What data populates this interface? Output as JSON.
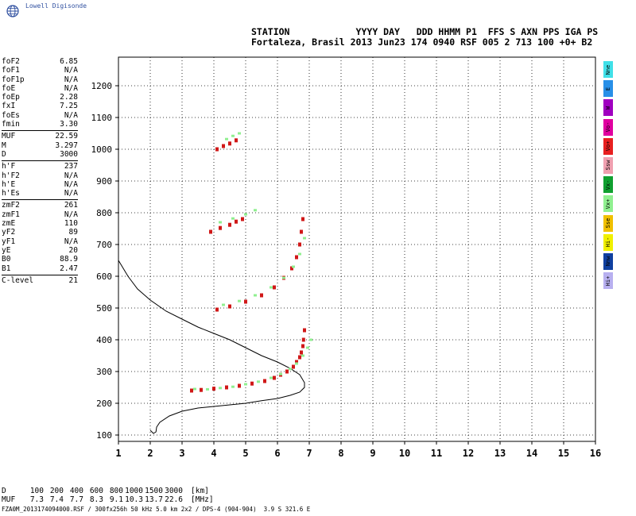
{
  "logo": {
    "text": "Lowell Digisonde",
    "icon": "globe-icon"
  },
  "header": {
    "line1": "STATION            YYYY DAY   DDD HHMM P1  FFS S AXN PPS IGA PS",
    "line2": "Fortaleza, Brasil 2013 Jun23 174 0940 RSF 005 2 713 100 +0+ B2"
  },
  "params": {
    "group1": [
      {
        "name": "foF2",
        "value": "6.85"
      },
      {
        "name": "foF1",
        "value": "N/A"
      },
      {
        "name": "foF1p",
        "value": "N/A"
      },
      {
        "name": "foE",
        "value": "N/A"
      },
      {
        "name": "foEp",
        "value": "2.28"
      },
      {
        "name": "fxI",
        "value": "7.25"
      },
      {
        "name": "foEs",
        "value": "N/A"
      },
      {
        "name": "fmin",
        "value": "3.30"
      }
    ],
    "group2": [
      {
        "name": "MUF",
        "value": "22.59"
      },
      {
        "name": "M",
        "value": "3.297"
      },
      {
        "name": "D",
        "value": "3000"
      }
    ],
    "group3": [
      {
        "name": "h'F",
        "value": "237"
      },
      {
        "name": "h'F2",
        "value": "N/A"
      },
      {
        "name": "h'E",
        "value": "N/A"
      },
      {
        "name": "h'Es",
        "value": "N/A"
      }
    ],
    "group4": [
      {
        "name": "zmF2",
        "value": "261"
      },
      {
        "name": "zmF1",
        "value": "N/A"
      },
      {
        "name": "zmE",
        "value": "110"
      },
      {
        "name": "yF2",
        "value": "89"
      },
      {
        "name": "yF1",
        "value": "N/A"
      },
      {
        "name": "yE",
        "value": "20"
      },
      {
        "name": "B0",
        "value": "88.9"
      },
      {
        "name": "B1",
        "value": "2.47"
      }
    ],
    "group5": [
      {
        "name": "C-level",
        "value": "21"
      }
    ]
  },
  "legend": [
    {
      "label": "Nne",
      "color": "#40e0e8"
    },
    {
      "label": "E",
      "color": "#2890e8"
    },
    {
      "label": "W",
      "color": "#a000c0"
    },
    {
      "label": "Vo-",
      "color": "#e000a0"
    },
    {
      "label": "Vo+",
      "color": "#e82020"
    },
    {
      "label": "Ssw",
      "color": "#f0a0b0"
    },
    {
      "label": "Vx-",
      "color": "#10a030"
    },
    {
      "label": "Vx+",
      "color": "#90f090"
    },
    {
      "label": "Sse",
      "color": "#f0c000"
    },
    {
      "label": "Hi-",
      "color": "#f0f000"
    },
    {
      "label": "Nnw",
      "color": "#1040a0"
    },
    {
      "label": "Hi+",
      "color": "#b8b0f0"
    }
  ],
  "muf_table": {
    "d_label": "D",
    "d_values": [
      "100",
      "200",
      "400",
      "600",
      "800",
      "1000",
      "1500",
      "3000"
    ],
    "d_unit": "[km]",
    "muf_label": "MUF",
    "muf_values": [
      "7.3",
      "7.4",
      "7.7",
      "8.3",
      "9.1",
      "10.3",
      "13.7",
      "22.6"
    ],
    "muf_unit": "[MHz]"
  },
  "footer": "FZA0M_2013174094000.RSF / 300fx256h 50 kHz 5.0 km 2x2 / DPS-4 (904-904)  3.9 S 321.6 E",
  "chart_data": {
    "type": "scatter",
    "title": "",
    "xlabel": "",
    "ylabel": "",
    "xlim": [
      1,
      16
    ],
    "ylim": [
      80,
      1290
    ],
    "xticks": [
      1,
      2,
      3,
      4,
      5,
      6,
      7,
      8,
      9,
      10,
      11,
      12,
      13,
      14,
      15,
      16
    ],
    "yticks": [
      100,
      200,
      300,
      400,
      500,
      600,
      700,
      800,
      900,
      1000,
      1100,
      1200
    ],
    "grid": "dotted",
    "legend_position": "right",
    "profile": {
      "x": [
        1.0,
        1.3,
        1.6,
        2.0,
        2.5,
        3.0,
        3.5,
        4.0,
        4.5,
        5.0,
        5.5,
        6.0,
        6.4,
        6.7,
        6.85,
        6.85,
        6.7,
        6.4,
        6.0,
        5.5,
        5.0,
        4.5,
        4.0,
        3.5,
        3.0,
        2.6,
        2.3,
        2.2,
        2.18,
        2.1,
        2.0
      ],
      "y": [
        650,
        600,
        560,
        525,
        490,
        465,
        440,
        420,
        400,
        375,
        350,
        330,
        310,
        290,
        265,
        250,
        235,
        225,
        215,
        208,
        200,
        195,
        190,
        185,
        175,
        160,
        140,
        125,
        110,
        105,
        115
      ]
    },
    "traces": [
      {
        "mode": "o",
        "x": [
          3.3,
          3.6,
          4.0,
          4.4,
          4.8,
          5.2,
          5.6,
          5.9,
          6.1,
          6.3,
          6.5,
          6.6,
          6.7,
          6.75,
          6.8,
          6.82,
          6.85
        ],
        "y": [
          240,
          242,
          246,
          250,
          255,
          262,
          270,
          280,
          290,
          300,
          315,
          330,
          345,
          360,
          380,
          400,
          430
        ]
      },
      {
        "mode": "x",
        "x": [
          3.4,
          3.8,
          4.2,
          4.6,
          5.0,
          5.4,
          5.8,
          6.1,
          6.4,
          6.6,
          6.8,
          6.95,
          7.05
        ],
        "y": [
          245,
          244,
          248,
          252,
          260,
          268,
          280,
          292,
          308,
          325,
          350,
          375,
          400
        ]
      },
      {
        "mode": "o",
        "x": [
          4.1,
          4.5,
          5.0,
          5.5,
          5.9,
          6.2,
          6.45,
          6.6,
          6.7,
          6.75,
          6.8
        ],
        "y": [
          495,
          505,
          520,
          540,
          565,
          595,
          625,
          660,
          700,
          740,
          780
        ]
      },
      {
        "mode": "x",
        "x": [
          4.3,
          4.8,
          5.3,
          5.8,
          6.2,
          6.5,
          6.7,
          6.85
        ],
        "y": [
          510,
          522,
          540,
          565,
          595,
          630,
          670,
          720
        ]
      },
      {
        "mode": "o",
        "x": [
          3.9,
          4.2,
          4.5,
          4.7,
          4.9
        ],
        "y": [
          740,
          752,
          762,
          772,
          780
        ]
      },
      {
        "mode": "x",
        "x": [
          4.2,
          4.6,
          5.0,
          5.3
        ],
        "y": [
          770,
          782,
          795,
          808
        ]
      },
      {
        "mode": "o",
        "x": [
          4.1,
          4.3,
          4.5,
          4.7
        ],
        "y": [
          1000,
          1010,
          1018,
          1028
        ]
      },
      {
        "mode": "x",
        "x": [
          4.4,
          4.6,
          4.8
        ],
        "y": [
          1032,
          1042,
          1050
        ]
      }
    ]
  }
}
